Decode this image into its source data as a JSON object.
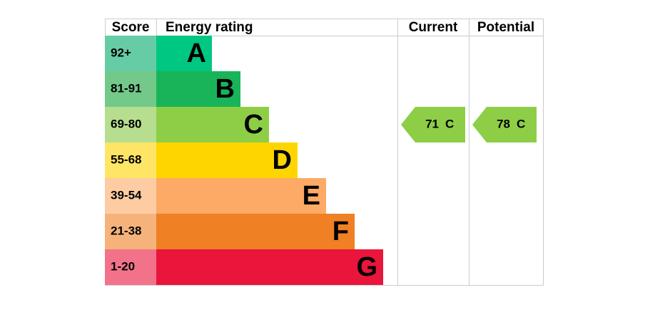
{
  "header": {
    "score": "Score",
    "rating": "Energy rating",
    "current": "Current",
    "potential": "Potential"
  },
  "bands": [
    {
      "score": "92+",
      "letter": "A",
      "color": "#00c781",
      "score_color": "#66cca6"
    },
    {
      "score": "81-91",
      "letter": "B",
      "color": "#19b459",
      "score_color": "#72c98a"
    },
    {
      "score": "69-80",
      "letter": "C",
      "color": "#8dce46",
      "score_color": "#b6de8e"
    },
    {
      "score": "55-68",
      "letter": "D",
      "color": "#ffd500",
      "score_color": "#ffe566"
    },
    {
      "score": "39-54",
      "letter": "E",
      "color": "#fcaa65",
      "score_color": "#fdcca3"
    },
    {
      "score": "21-38",
      "letter": "F",
      "color": "#ef8023",
      "score_color": "#f5b37b"
    },
    {
      "score": "1-20",
      "letter": "G",
      "color": "#e9153b",
      "score_color": "#f27389"
    }
  ],
  "current": {
    "value": 71,
    "letter": "C"
  },
  "potential": {
    "value": 78,
    "letter": "C"
  }
}
